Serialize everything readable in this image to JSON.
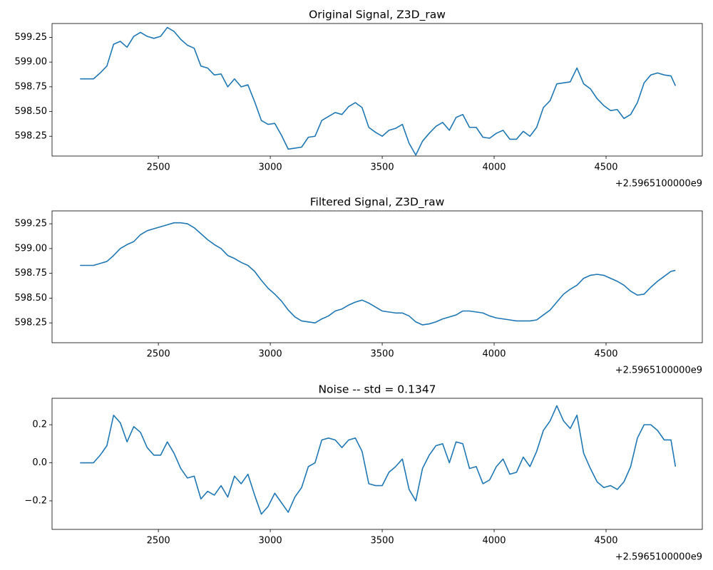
{
  "chart_data": [
    {
      "type": "line",
      "title": "Original Signal, Z3D_raw",
      "x_offset_label": "+2.5965100000e9",
      "color": "#1f77b4",
      "x": [
        2150,
        2180,
        2210,
        2240,
        2270,
        2300,
        2330,
        2360,
        2390,
        2420,
        2450,
        2480,
        2510,
        2540,
        2570,
        2600,
        2630,
        2660,
        2690,
        2720,
        2750,
        2780,
        2810,
        2840,
        2870,
        2900,
        2930,
        2960,
        2990,
        3020,
        3050,
        3080,
        3110,
        3140,
        3170,
        3200,
        3230,
        3260,
        3290,
        3320,
        3350,
        3380,
        3410,
        3440,
        3470,
        3500,
        3530,
        3560,
        3590,
        3620,
        3650,
        3680,
        3710,
        3740,
        3770,
        3800,
        3830,
        3860,
        3890,
        3920,
        3950,
        3980,
        4010,
        4040,
        4070,
        4100,
        4130,
        4160,
        4190,
        4220,
        4250,
        4280,
        4310,
        4340,
        4370,
        4400,
        4430,
        4460,
        4490,
        4520,
        4550,
        4580,
        4610,
        4640,
        4670,
        4700,
        4730,
        4760,
        4790,
        4810
      ],
      "values": [
        598.83,
        598.83,
        598.83,
        598.89,
        598.96,
        599.18,
        599.21,
        599.15,
        599.26,
        599.3,
        599.26,
        599.24,
        599.26,
        599.35,
        599.31,
        599.23,
        599.17,
        599.14,
        598.96,
        598.94,
        598.87,
        598.88,
        598.75,
        598.83,
        598.75,
        598.77,
        598.6,
        598.41,
        598.37,
        598.38,
        598.26,
        598.12,
        598.13,
        598.14,
        598.24,
        598.25,
        598.41,
        598.45,
        598.49,
        598.47,
        598.55,
        598.59,
        598.54,
        598.34,
        598.29,
        598.25,
        598.31,
        598.33,
        598.37,
        598.18,
        598.06,
        598.2,
        598.28,
        598.35,
        598.39,
        598.31,
        598.44,
        598.47,
        598.34,
        598.34,
        598.24,
        598.23,
        598.28,
        598.31,
        598.22,
        598.22,
        598.3,
        598.25,
        598.34,
        598.54,
        598.61,
        598.78,
        598.79,
        598.8,
        598.94,
        598.78,
        598.73,
        598.63,
        598.56,
        598.51,
        598.52,
        598.43,
        598.47,
        598.59,
        598.79,
        598.87,
        598.89,
        598.87,
        598.86,
        598.76
      ],
      "xlim": [
        2025,
        4930
      ],
      "xticks": [
        2500,
        3000,
        3500,
        4000,
        4500
      ],
      "ylim": [
        598.05,
        599.39
      ],
      "yticks": [
        598.25,
        {
          "value": 598.5,
          "label": "598.50"
        },
        598.75,
        {
          "value": 599,
          "label": "599.00"
        },
        599.25
      ]
    },
    {
      "type": "line",
      "title": "Filtered Signal, Z3D_raw",
      "x_offset_label": "+2.5965100000e9",
      "color": "#1f77b4",
      "x": [
        2150,
        2180,
        2210,
        2240,
        2270,
        2300,
        2330,
        2360,
        2390,
        2420,
        2450,
        2480,
        2510,
        2540,
        2570,
        2600,
        2630,
        2660,
        2690,
        2720,
        2750,
        2780,
        2810,
        2840,
        2870,
        2900,
        2930,
        2960,
        2990,
        3020,
        3050,
        3080,
        3110,
        3140,
        3170,
        3200,
        3230,
        3260,
        3290,
        3320,
        3350,
        3380,
        3410,
        3440,
        3470,
        3500,
        3530,
        3560,
        3590,
        3620,
        3650,
        3680,
        3710,
        3740,
        3770,
        3800,
        3830,
        3860,
        3890,
        3920,
        3950,
        3980,
        4010,
        4040,
        4070,
        4100,
        4130,
        4160,
        4190,
        4220,
        4250,
        4280,
        4310,
        4340,
        4370,
        4400,
        4430,
        4460,
        4490,
        4520,
        4550,
        4580,
        4610,
        4640,
        4670,
        4700,
        4730,
        4760,
        4790,
        4810
      ],
      "values": [
        598.83,
        598.83,
        598.83,
        598.85,
        598.87,
        598.93,
        599.0,
        599.04,
        599.07,
        599.14,
        599.18,
        599.2,
        599.22,
        599.24,
        599.26,
        599.26,
        599.25,
        599.21,
        599.15,
        599.09,
        599.04,
        599.0,
        598.93,
        598.9,
        598.86,
        598.83,
        598.77,
        598.68,
        598.6,
        598.54,
        598.47,
        598.38,
        598.31,
        598.27,
        598.26,
        598.25,
        598.29,
        598.32,
        598.37,
        598.39,
        598.43,
        598.46,
        598.48,
        598.45,
        598.41,
        598.37,
        598.36,
        598.35,
        598.35,
        598.32,
        598.26,
        598.23,
        598.24,
        598.26,
        598.29,
        598.31,
        598.33,
        598.37,
        598.37,
        598.36,
        598.35,
        598.32,
        598.3,
        598.29,
        598.28,
        598.27,
        598.27,
        598.27,
        598.28,
        598.33,
        598.38,
        598.46,
        598.54,
        598.59,
        598.63,
        598.7,
        598.73,
        598.74,
        598.73,
        598.7,
        598.67,
        598.63,
        598.57,
        598.53,
        598.54,
        598.61,
        598.67,
        598.72,
        598.77,
        598.78
      ],
      "xlim": [
        2025,
        4930
      ],
      "xticks": [
        2500,
        3000,
        3500,
        4000,
        4500
      ],
      "ylim": [
        598.05,
        599.38
      ],
      "yticks": [
        598.25,
        {
          "value": 598.5,
          "label": "598.50"
        },
        598.75,
        {
          "value": 599,
          "label": "599.00"
        },
        599.25
      ]
    },
    {
      "type": "line",
      "title": "Noise -- std = 0.1347",
      "x_offset_label": "+2.5965100000e9",
      "color": "#1f77b4",
      "x": [
        2150,
        2180,
        2210,
        2240,
        2270,
        2300,
        2330,
        2360,
        2390,
        2420,
        2450,
        2480,
        2510,
        2540,
        2570,
        2600,
        2630,
        2660,
        2690,
        2720,
        2750,
        2780,
        2810,
        2840,
        2870,
        2900,
        2930,
        2960,
        2990,
        3020,
        3050,
        3080,
        3110,
        3140,
        3170,
        3200,
        3230,
        3260,
        3290,
        3320,
        3350,
        3380,
        3410,
        3440,
        3470,
        3500,
        3530,
        3560,
        3590,
        3620,
        3650,
        3680,
        3710,
        3740,
        3770,
        3800,
        3830,
        3860,
        3890,
        3920,
        3950,
        3980,
        4010,
        4040,
        4070,
        4100,
        4130,
        4160,
        4190,
        4220,
        4250,
        4280,
        4310,
        4340,
        4370,
        4400,
        4430,
        4460,
        4490,
        4520,
        4550,
        4580,
        4610,
        4640,
        4670,
        4700,
        4730,
        4760,
        4790,
        4810
      ],
      "values": [
        0.0,
        0.0,
        0.0,
        0.04,
        0.09,
        0.25,
        0.21,
        0.11,
        0.19,
        0.16,
        0.08,
        0.04,
        0.04,
        0.11,
        0.05,
        -0.03,
        -0.08,
        -0.07,
        -0.19,
        -0.15,
        -0.17,
        -0.12,
        -0.18,
        -0.07,
        -0.11,
        -0.06,
        -0.17,
        -0.27,
        -0.23,
        -0.16,
        -0.21,
        -0.26,
        -0.18,
        -0.13,
        -0.02,
        0.0,
        0.12,
        0.13,
        0.12,
        0.08,
        0.12,
        0.13,
        0.06,
        -0.11,
        -0.12,
        -0.12,
        -0.05,
        -0.02,
        0.02,
        -0.14,
        -0.2,
        -0.03,
        0.04,
        0.09,
        0.1,
        0.0,
        0.11,
        0.1,
        -0.03,
        -0.02,
        -0.11,
        -0.09,
        -0.02,
        0.02,
        -0.06,
        -0.05,
        0.03,
        -0.02,
        0.06,
        0.17,
        0.22,
        0.3,
        0.22,
        0.18,
        0.25,
        0.05,
        -0.03,
        -0.1,
        -0.13,
        -0.12,
        -0.14,
        -0.1,
        -0.02,
        0.13,
        0.2,
        0.2,
        0.17,
        0.12,
        0.12,
        -0.02
      ],
      "xlim": [
        2025,
        4930
      ],
      "xticks": [
        2500,
        3000,
        3500,
        4000,
        4500
      ],
      "ylim": [
        -0.35,
        0.339
      ],
      "yticks": [
        {
          "value": -0.2,
          "label": "−0.2"
        },
        {
          "value": 0,
          "label": "0.0"
        },
        0.2
      ]
    }
  ]
}
